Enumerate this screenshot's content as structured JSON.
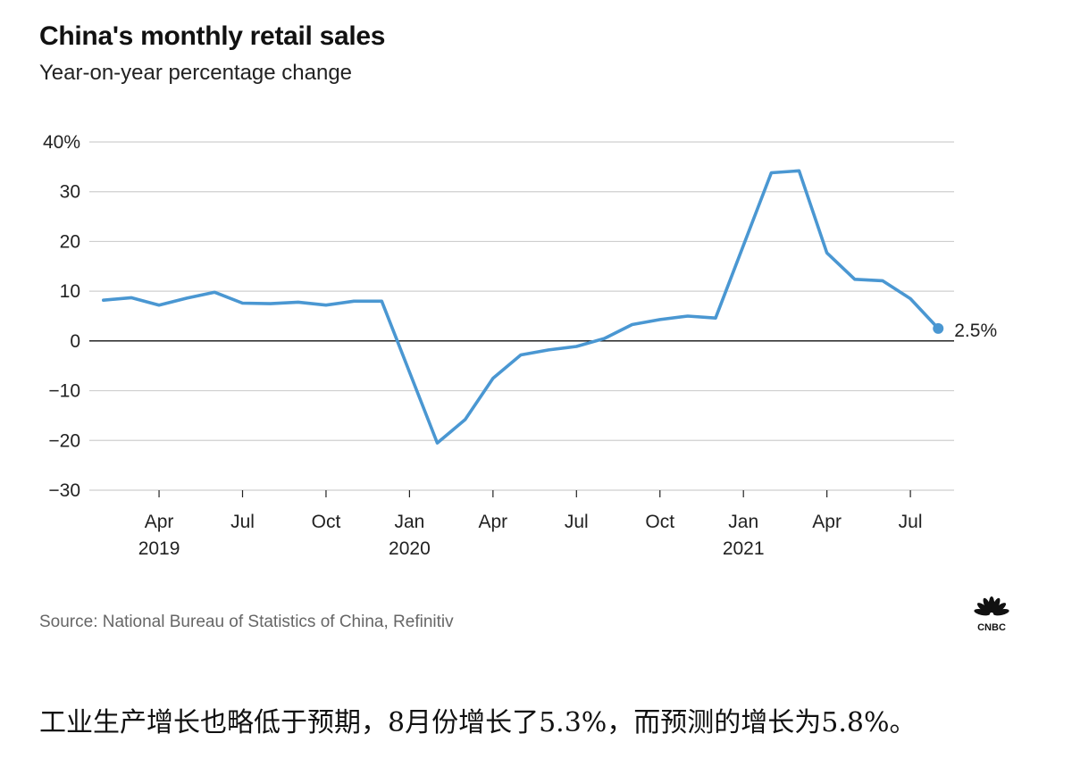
{
  "header": {
    "title": "China's monthly retail sales",
    "subtitle": "Year-on-year percentage change"
  },
  "chart_data": {
    "type": "line",
    "title": "China's monthly retail sales",
    "subtitle": "Year-on-year percentage change",
    "ylabel": "",
    "xlabel": "",
    "ylim": [
      -30,
      40
    ],
    "y_ticks": [
      40,
      30,
      20,
      10,
      0,
      -10,
      -20,
      -30
    ],
    "y_tick_labels": [
      "40%",
      "30",
      "20",
      "10",
      "0",
      "−10",
      "−20",
      "−30"
    ],
    "x_ticks": [
      {
        "x": "2019-04",
        "label": "Apr",
        "year": "2019"
      },
      {
        "x": "2019-07",
        "label": "Jul",
        "year": ""
      },
      {
        "x": "2019-10",
        "label": "Oct",
        "year": ""
      },
      {
        "x": "2020-01",
        "label": "Jan",
        "year": "2020"
      },
      {
        "x": "2020-04",
        "label": "Apr",
        "year": ""
      },
      {
        "x": "2020-07",
        "label": "Jul",
        "year": ""
      },
      {
        "x": "2020-10",
        "label": "Oct",
        "year": ""
      },
      {
        "x": "2021-01",
        "label": "Jan",
        "year": "2021"
      },
      {
        "x": "2021-04",
        "label": "Apr",
        "year": ""
      },
      {
        "x": "2021-07",
        "label": "Jul",
        "year": ""
      }
    ],
    "series": [
      {
        "color": "#4a97d2",
        "points": [
          {
            "x": "2019-02",
            "y": 8.2
          },
          {
            "x": "2019-03",
            "y": 8.7
          },
          {
            "x": "2019-04",
            "y": 7.2
          },
          {
            "x": "2019-05",
            "y": 8.6
          },
          {
            "x": "2019-06",
            "y": 9.8
          },
          {
            "x": "2019-07",
            "y": 7.6
          },
          {
            "x": "2019-08",
            "y": 7.5
          },
          {
            "x": "2019-09",
            "y": 7.8
          },
          {
            "x": "2019-10",
            "y": 7.2
          },
          {
            "x": "2019-11",
            "y": 8.0
          },
          {
            "x": "2019-12",
            "y": 8.0
          },
          {
            "x": "2020-02",
            "y": -20.5
          },
          {
            "x": "2020-03",
            "y": -15.8
          },
          {
            "x": "2020-04",
            "y": -7.5
          },
          {
            "x": "2020-05",
            "y": -2.8
          },
          {
            "x": "2020-06",
            "y": -1.8
          },
          {
            "x": "2020-07",
            "y": -1.1
          },
          {
            "x": "2020-08",
            "y": 0.5
          },
          {
            "x": "2020-09",
            "y": 3.3
          },
          {
            "x": "2020-10",
            "y": 4.3
          },
          {
            "x": "2020-11",
            "y": 5.0
          },
          {
            "x": "2020-12",
            "y": 4.6
          },
          {
            "x": "2021-02",
            "y": 33.8
          },
          {
            "x": "2021-03",
            "y": 34.2
          },
          {
            "x": "2021-04",
            "y": 17.7
          },
          {
            "x": "2021-05",
            "y": 12.4
          },
          {
            "x": "2021-06",
            "y": 12.1
          },
          {
            "x": "2021-07",
            "y": 8.5
          },
          {
            "x": "2021-08",
            "y": 2.5
          }
        ]
      }
    ],
    "end_label": "2.5%",
    "grid": true,
    "zero_line": true
  },
  "footer": {
    "source": "Source: National Bureau of Statistics of China, Refinitiv",
    "logo_text": "CNBC"
  },
  "caption": "工业生产增长也略低于预期，8月份增长了5.3%，而预测的增长为5.8%。",
  "colors": {
    "line": "#4a97d2",
    "grid": "#cfcfcf",
    "zero": "#111111"
  }
}
